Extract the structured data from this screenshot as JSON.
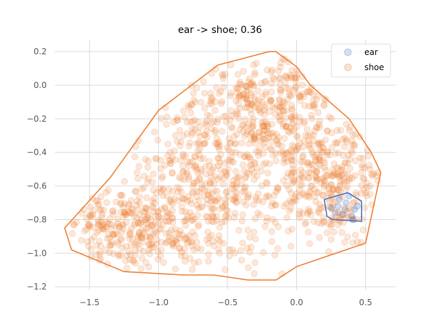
{
  "chart_data": {
    "type": "scatter",
    "title": "ear -> shoe; 0.36",
    "xlabel": "",
    "ylabel": "",
    "xlim": [
      -1.75,
      0.72
    ],
    "ylim": [
      -1.22,
      0.27
    ],
    "xticks": [
      -1.5,
      -1.0,
      -0.5,
      0.0,
      0.5
    ],
    "xtick_labels": [
      "−1.5",
      "−1.0",
      "−0.5",
      "0.0",
      "0.5"
    ],
    "yticks": [
      0.2,
      0.0,
      -0.2,
      -0.4,
      -0.6,
      -0.8,
      -1.0,
      -1.2
    ],
    "ytick_labels": [
      "0.2",
      "0.0",
      "−0.2",
      "−0.4",
      "−0.6",
      "−0.8",
      "−1.0",
      "−1.2"
    ],
    "grid": true,
    "legend_position": "top-right",
    "series": [
      {
        "name": "ear",
        "color": "#4472c4",
        "hull": [
          [
            0.2,
            -0.68
          ],
          [
            0.37,
            -0.64
          ],
          [
            0.47,
            -0.69
          ],
          [
            0.47,
            -0.81
          ],
          [
            0.26,
            -0.8
          ],
          [
            0.22,
            -0.78
          ]
        ],
        "points": [
          [
            0.3,
            -0.72
          ],
          [
            0.36,
            -0.7
          ],
          [
            0.42,
            -0.74
          ],
          [
            0.33,
            -0.77
          ],
          [
            0.4,
            -0.78
          ],
          [
            0.28,
            -0.76
          ],
          [
            0.38,
            -0.66
          ],
          [
            0.44,
            -0.72
          ],
          [
            0.31,
            -0.68
          ],
          [
            0.35,
            -0.74
          ],
          [
            0.25,
            -0.73
          ],
          [
            0.41,
            -0.8
          ]
        ]
      },
      {
        "name": "shoe",
        "color": "#ed7d31",
        "hull": [
          [
            -0.2,
            0.2
          ],
          [
            -0.15,
            0.2
          ],
          [
            0.0,
            0.11
          ],
          [
            0.1,
            0.0
          ],
          [
            0.38,
            -0.2
          ],
          [
            0.54,
            -0.4
          ],
          [
            0.61,
            -0.52
          ],
          [
            0.5,
            -0.94
          ],
          [
            0.0,
            -1.08
          ],
          [
            -0.15,
            -1.16
          ],
          [
            -0.35,
            -1.16
          ],
          [
            -0.6,
            -1.13
          ],
          [
            -0.82,
            -1.13
          ],
          [
            -1.25,
            -1.11
          ],
          [
            -1.63,
            -0.98
          ],
          [
            -1.68,
            -0.85
          ],
          [
            -1.35,
            -0.55
          ],
          [
            -1.0,
            -0.15
          ],
          [
            -0.57,
            0.12
          ]
        ],
        "points_generated": 1400
      }
    ]
  }
}
